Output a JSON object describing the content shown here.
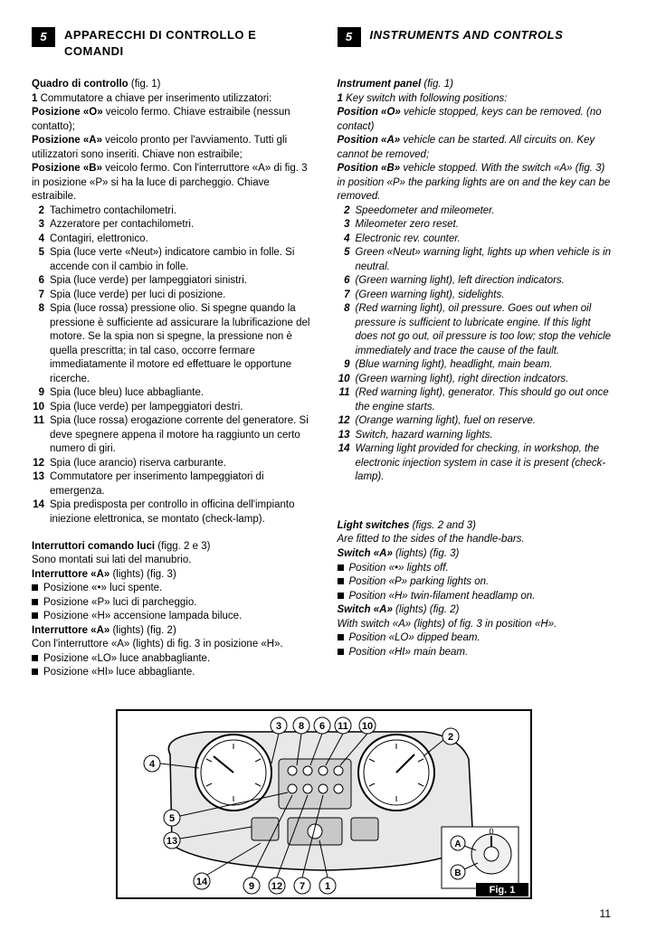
{
  "left": {
    "num": "5",
    "title": "APPARECCHI DI CONTROLLO E COMANDI",
    "panel_head": "Quadro di controllo",
    "panel_fig": "(fig. 1)",
    "item1_pre": "1",
    "item1": "Commutatore a chiave per inserimento utilizzatori:",
    "posO_b": "Posizione «O»",
    "posO_t": " veicolo fermo. Chiave estraibile (nessun contatto);",
    "posA_b": "Posizione «A»",
    "posA_t": " veicolo pronto per l'avviamento. Tutti gli utilizzatori sono inseriti. Chiave non estraibile;",
    "posB_b": "Posizione «B»",
    "posB_t": " veicolo fermo. Con l'interruttore «A» di fig. 3 in posizione «P» si ha la luce di parcheggio. Chiave estraibile.",
    "items": [
      {
        "n": "2",
        "t": "Tachimetro contachilometri."
      },
      {
        "n": "3",
        "t": "Azzeratore per contachilometri."
      },
      {
        "n": "4",
        "t": "Contagiri, elettronico."
      },
      {
        "n": "5",
        "t": "Spia (luce verte «Neut») indicatore cambio in folle. Si accende con il cambio in folle."
      },
      {
        "n": "6",
        "t": "Spia (luce verde) per lampeggiatori sinistri."
      },
      {
        "n": "7",
        "t": "Spia (luce verde) per luci di posizione."
      },
      {
        "n": "8",
        "t": "Spia (luce rossa) pressione olio. Si spegne quando la pressione è sufficiente ad assicurare la lubrificazione del motore. Se la spia non si spegne, la pressione non è quella prescritta; in tal caso, occorre fermare immediatamente il motore ed effettuare le opportune ricerche."
      },
      {
        "n": "9",
        "t": "Spia (luce bleu) luce abbagliante."
      },
      {
        "n": "10",
        "t": "Spia (luce verde) per lampeggiatori destri."
      },
      {
        "n": "11",
        "t": "Spia (luce rossa) erogazione corrente del generatore. Si deve spegnere appena il motore ha raggiunto un certo numero di giri."
      },
      {
        "n": "12",
        "t": "Spia (luce arancio) riserva carburante."
      },
      {
        "n": "13",
        "t": "Commutatore per inserimento lampeggiatori di emergenza."
      },
      {
        "n": "14",
        "t": "Spia predisposta per controllo in officina dell'impianto iniezione elettronica, se montato (check-lamp)."
      }
    ],
    "lights_head": "Interruttori comando luci",
    "lights_fig": "(figg. 2 e 3)",
    "lights_intro": "Sono montati sui lati del manubrio.",
    "swA3_b": "Interruttore «A»",
    "swA3_t": " (lights) (fig. 3)",
    "swA3_items": [
      "Posizione «•» luci spente.",
      "Posizione «P» luci di parcheggio.",
      "Posizione «H» accensione lampada biluce."
    ],
    "swA2_b": "Interruttore «A»",
    "swA2_t": " (lights) (fig. 2)",
    "swA2_intro": "Con l'interruttore «A» (lights) di fig. 3 in posizione «H».",
    "swA2_items": [
      "Posizione «LO» luce anabbagliante.",
      "Posizione «HI» luce abbagliante."
    ]
  },
  "right": {
    "num": "5",
    "title": "INSTRUMENTS AND CONTROLS",
    "panel_head": "Instrument panel",
    "panel_fig": "(fig. 1)",
    "item1_pre": "1",
    "item1": "Key switch with following positions:",
    "posO_b": "Position «O»",
    "posO_t": " vehicle stopped, keys can be removed. (no contact)",
    "posA_b": "Position «A»",
    "posA_t": " vehicle can be started. All circuits on. Key cannot be removed;",
    "posB_b": "Position «B»",
    "posB_t": " vehicle stopped. With the switch «A» (fig. 3) in position «P» the parking lights are on and the key can be removed.",
    "items": [
      {
        "n": "2",
        "t": "Speedometer and mileometer."
      },
      {
        "n": "3",
        "t": "Mileometer zero reset."
      },
      {
        "n": "4",
        "t": "Electronic rev. counter."
      },
      {
        "n": "5",
        "t": "Green «Neut» warning light, lights up when vehicle is in neutral."
      },
      {
        "n": "6",
        "t": "(Green warning light), left direction indicators."
      },
      {
        "n": "7",
        "t": "(Green warning light), sidelights."
      },
      {
        "n": "8",
        "t": "(Red warning light), oil pressure. Goes out when oil pressure is sufficient to lubricate engine. If this light does not go out, oil pressure is too low; stop the vehicle immediately and trace the cause of the fault."
      },
      {
        "n": "9",
        "t": "(Blue warning light), headlight, main beam."
      },
      {
        "n": "10",
        "t": "(Green warning light), right direction indcators."
      },
      {
        "n": "11",
        "t": "(Red warning light), generator. This should go out once the engine starts."
      },
      {
        "n": "12",
        "t": "(Orange warning light), fuel on reserve."
      },
      {
        "n": "13",
        "t": "Switch, hazard warning lights."
      },
      {
        "n": "14",
        "t": "Warning light provided for checking, in workshop, the electronic injection system in case it is present (check-lamp)."
      }
    ],
    "lights_head": "Light switches",
    "lights_fig": "(figs. 2 and 3)",
    "lights_intro": "Are fitted to the sides of the handle-bars.",
    "swA3_b": "Switch «A»",
    "swA3_t": " (lights) (fig. 3)",
    "swA3_items": [
      "Position «•» lights off.",
      "Position «P» parking lights on.",
      "Position «H» twin-filament headlamp on."
    ],
    "swA2_b": "Switch «A»",
    "swA2_t": " (lights) (fig. 2)",
    "swA2_intro": "With switch «A» (lights) of fig. 3 in position «H».",
    "swA2_items": [
      "Position «LO» dipped beam.",
      "Position «HI» main beam."
    ]
  },
  "figure": {
    "caption": "Fig. 1",
    "callouts": [
      "1",
      "2",
      "3",
      "4",
      "5",
      "6",
      "7",
      "8",
      "9",
      "10",
      "11",
      "12",
      "13",
      "14",
      "A",
      "B"
    ]
  },
  "page": "11"
}
